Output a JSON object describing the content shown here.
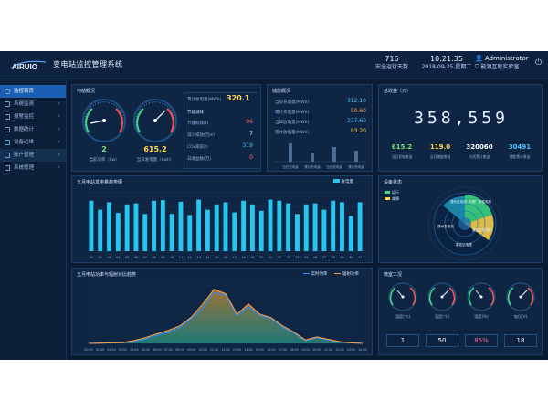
{
  "app": {
    "logo_text": "AIRUIO",
    "title": "变电站监控管理系统"
  },
  "topbar": {
    "days": "716",
    "days_label": "安全运行天数",
    "time": "10:21:35",
    "date": "2018-09-25 星期二",
    "user": "Administrator",
    "company": "能源互联实验室"
  },
  "sidebar": {
    "items": [
      {
        "label": "监控首页",
        "active": true
      },
      {
        "label": "系统监测"
      },
      {
        "label": "报警监控"
      },
      {
        "label": "数据统计"
      },
      {
        "label": "设备运维"
      },
      {
        "label": "账户管理"
      },
      {
        "label": "系统管理"
      }
    ]
  },
  "power_overview": {
    "title": "电站概况",
    "gauge1_value": "2",
    "gauge1_label": "当前功率（kw）",
    "gauge2_value": "615.2",
    "gauge2_label": "当日发电量（kwh）",
    "total_label": "累计发电量(MWh)",
    "total_value": "320.1",
    "section_label": "节能减排",
    "rows": [
      {
        "label": "节能标煤(t)",
        "value": "96",
        "color": "#ff6b6b"
      },
      {
        "label": "减少排放(万m³)",
        "value": "7",
        "color": "#ffffff"
      },
      {
        "label": "CO₂减排(t)",
        "value": "319",
        "color": "#4fc3ff"
      },
      {
        "label": "日收益数(万)",
        "value": "0",
        "color": "#ff6b6b"
      }
    ]
  },
  "storage_overview": {
    "title": "储能概况",
    "rows": [
      {
        "label": "当日充电量(MWh)",
        "value": "312.10",
        "color": "#4fc3ff"
      },
      {
        "label": "累计充电量(MWh)",
        "value": "50.60",
        "color": "#ff9a3c"
      },
      {
        "label": "当日放电量(MWh)",
        "value": "237.60",
        "color": "#4fc3ff"
      },
      {
        "label": "累计放电量(MWh)",
        "value": "93.20",
        "color": "#ffd54a"
      }
    ],
    "bar_labels": [
      "当日充电量",
      "累计充电量",
      "当日放电量",
      "累计放电量"
    ]
  },
  "total_income": {
    "title": "总收益（元）",
    "value": "358,559",
    "items": [
      {
        "value": "615.2",
        "label": "当日发电收益",
        "color": "#7be37b"
      },
      {
        "value": "119.0",
        "label": "当日储能收益",
        "color": "#ffd54a"
      },
      {
        "value": "320060",
        "label": "光伏累计收益",
        "color": "#ffffff"
      },
      {
        "value": "30491",
        "label": "储能累计收益",
        "color": "#4fc3ff"
      }
    ]
  },
  "generation_chart": {
    "title": "五月电站发电量趋势图",
    "legend": "发电量",
    "color": "#26c6f0"
  },
  "device_status": {
    "title": "设备状态",
    "legend": [
      "运行",
      "故障"
    ],
    "labels": [
      "薄州发电机",
      "光明厂房发电机",
      "薄州发电机",
      "康会达发电机",
      "康会达电表"
    ]
  },
  "power_radiation": {
    "title": "五月电站功率与辐射对比趋势",
    "legend": [
      "实时功率",
      "辐射功率"
    ]
  },
  "env_monitor": {
    "title": "微室工况",
    "gauges": [
      {
        "label": "温度(℃)",
        "value": "1",
        "color": "#ffffff"
      },
      {
        "label": "温度(℃)",
        "value": "50",
        "color": "#ffffff"
      },
      {
        "label": "湿度(%)",
        "value": "85%",
        "color": "#ff6b9a"
      },
      {
        "label": "电压(V)",
        "value": "18",
        "color": "#ffffff"
      }
    ]
  },
  "chart_data": [
    {
      "type": "bar",
      "title": "五月电站发电量趋势图",
      "categories": [
        "01",
        "02",
        "03",
        "04",
        "05",
        "06",
        "07",
        "08",
        "09",
        "10",
        "11",
        "12",
        "13",
        "14",
        "15",
        "16",
        "17",
        "18",
        "19",
        "20",
        "21",
        "22",
        "23",
        "24",
        "25",
        "26",
        "27",
        "28",
        "29",
        "30",
        "31"
      ],
      "values": [
        95,
        78,
        92,
        72,
        88,
        90,
        70,
        95,
        96,
        70,
        93,
        68,
        97,
        78,
        88,
        92,
        73,
        95,
        88,
        76,
        97,
        95,
        90,
        70,
        88,
        90,
        78,
        95,
        92,
        66,
        92
      ],
      "ylim": [
        0,
        110
      ],
      "legend": [
        "发电量"
      ]
    },
    {
      "type": "area",
      "title": "五月电站功率与辐射对比趋势",
      "x": [
        "00:00",
        "01:00",
        "02:00",
        "03:00",
        "04:00",
        "05:00",
        "06:00",
        "07:00",
        "08:00",
        "09:00",
        "10:00",
        "11:00",
        "12:00",
        "13:00",
        "14:00",
        "15:00",
        "16:00",
        "17:00",
        "18:00",
        "19:00",
        "20:00",
        "21:00",
        "22:00",
        "23:00",
        "24:00"
      ],
      "series": [
        {
          "name": "实时功率",
          "values": [
            0,
            1,
            2,
            3,
            8,
            15,
            28,
            38,
            55,
            85,
            120,
            175,
            165,
            95,
            125,
            95,
            85,
            55,
            35,
            10,
            20,
            12,
            5,
            2,
            0
          ]
        },
        {
          "name": "辐射功率",
          "values": [
            0,
            1,
            2,
            3,
            10,
            20,
            33,
            45,
            60,
            90,
            135,
            185,
            170,
            100,
            135,
            100,
            88,
            60,
            38,
            12,
            22,
            14,
            6,
            2,
            0
          ]
        }
      ],
      "ylim": [
        0,
        200
      ],
      "legend": [
        "实时功率",
        "辐射功率"
      ]
    }
  ]
}
